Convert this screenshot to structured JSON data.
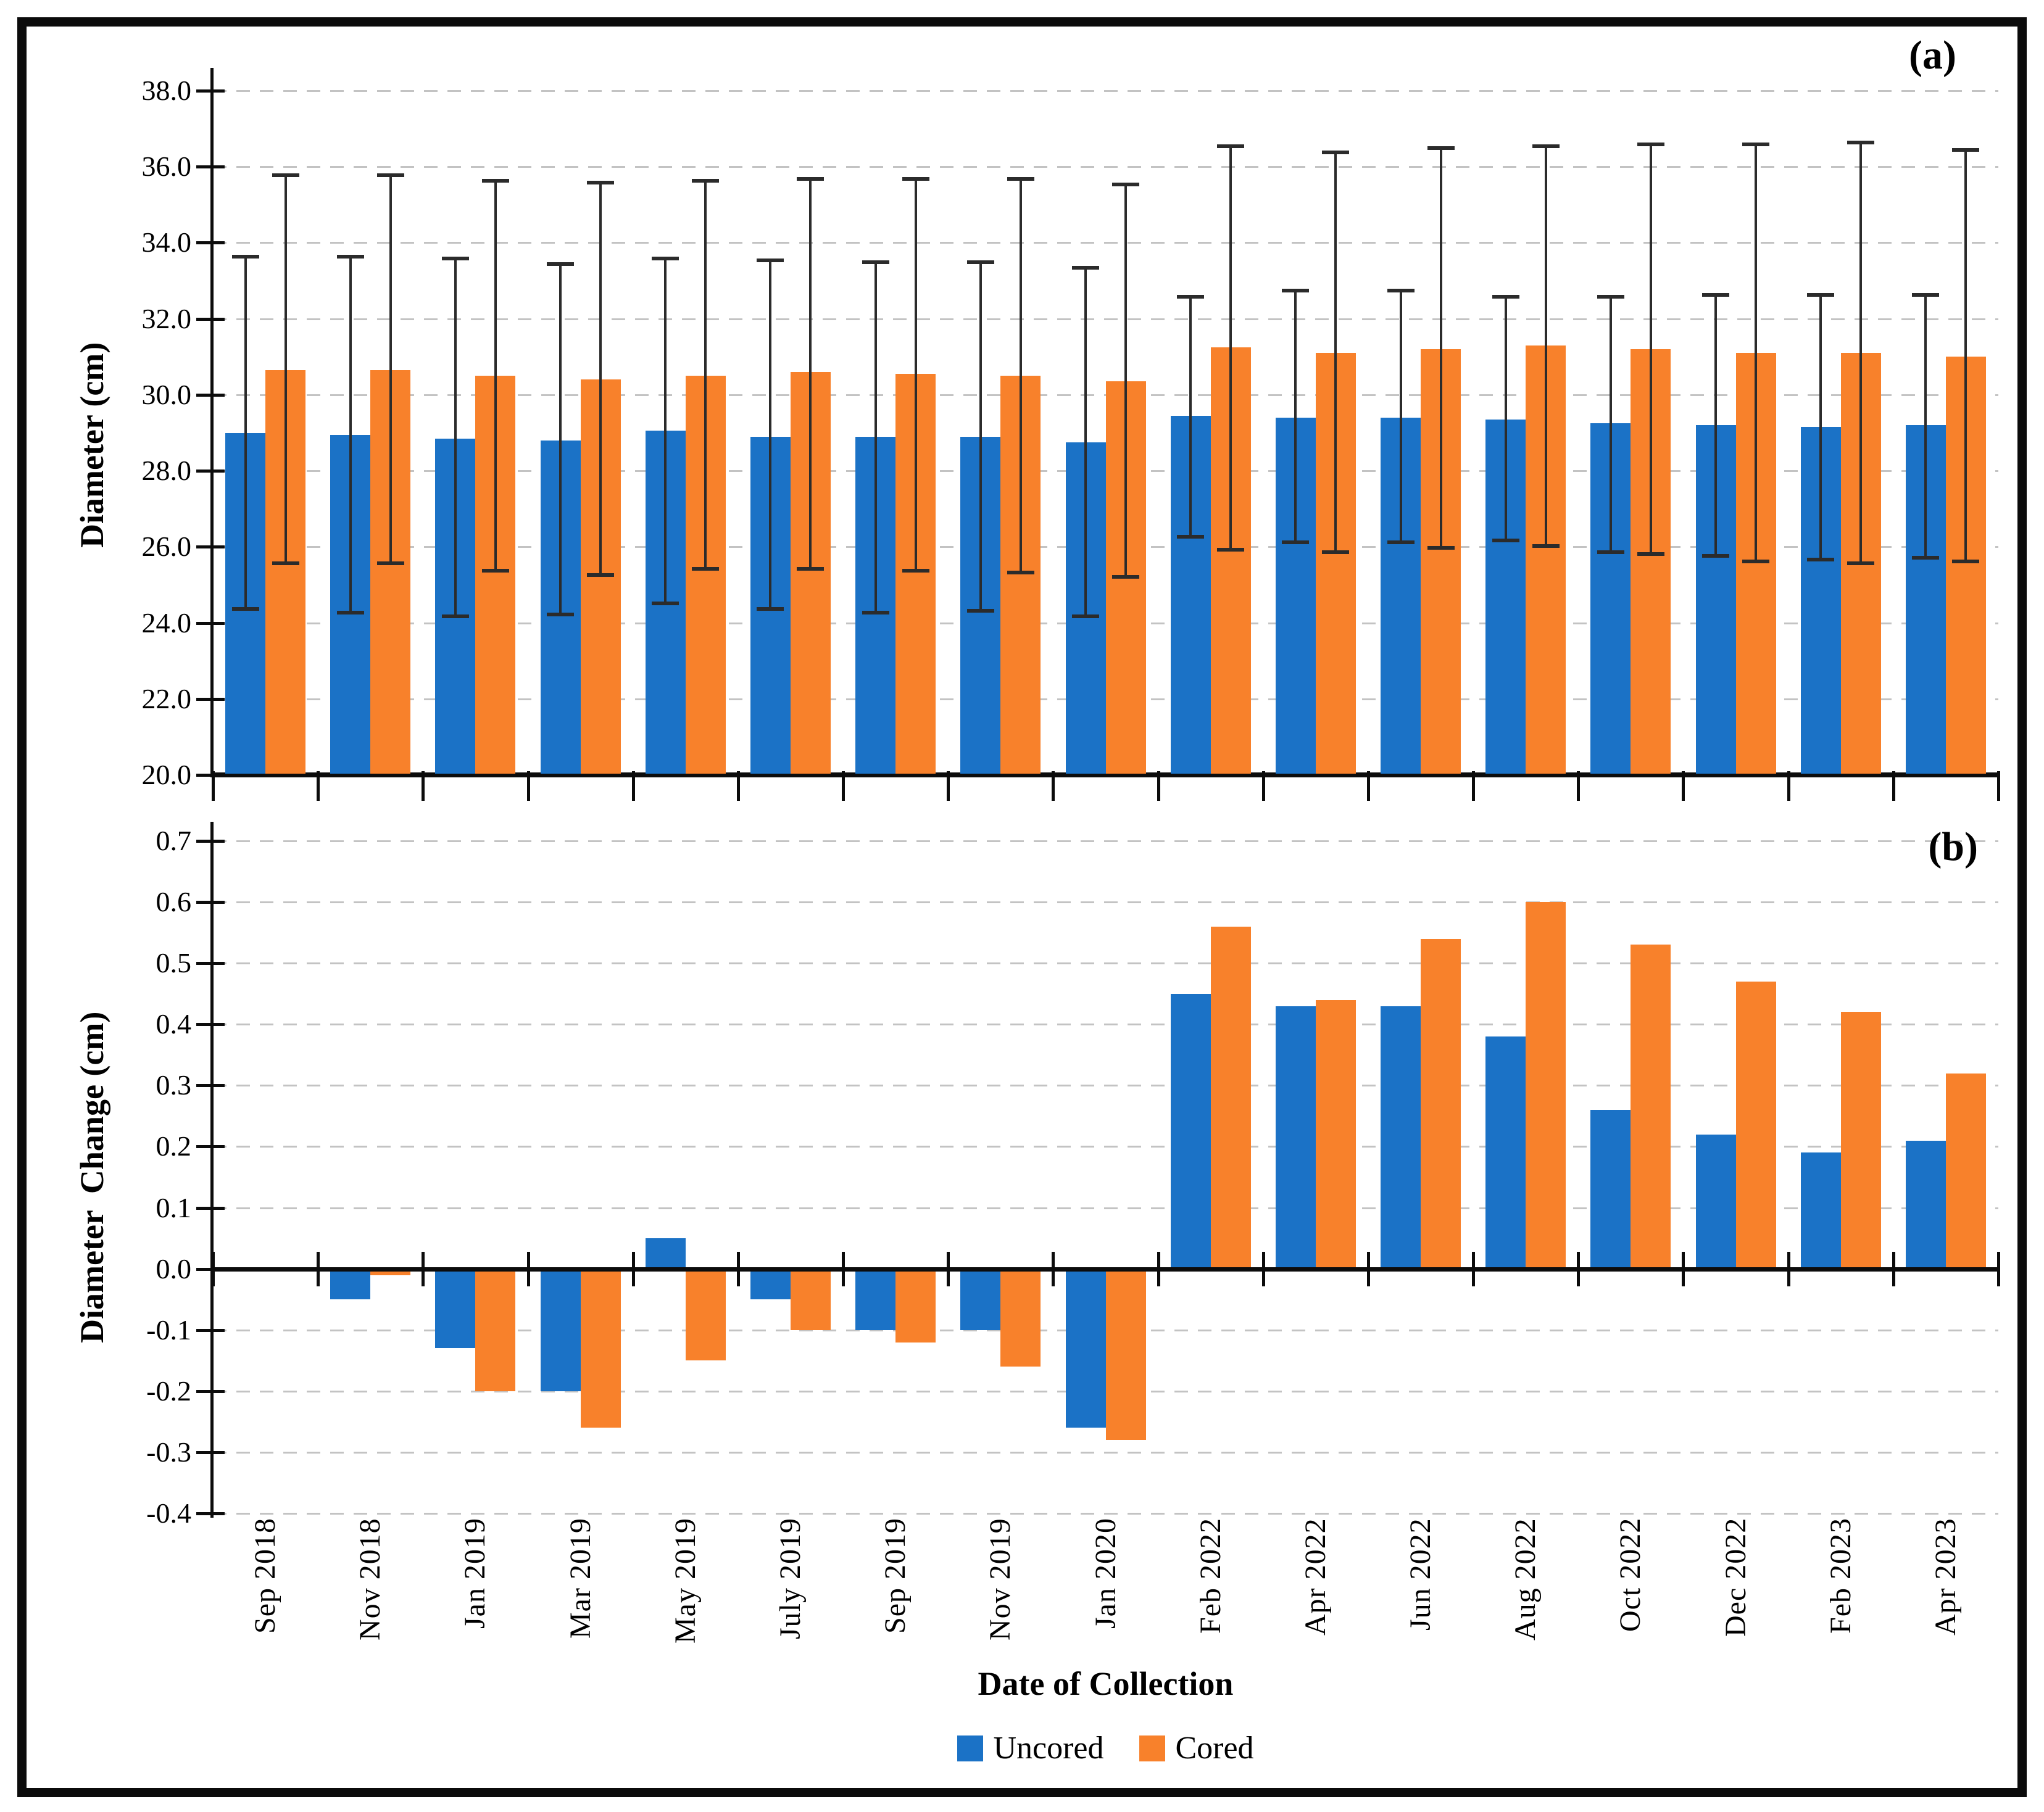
{
  "figure": {
    "panel_a_label": "(a)",
    "panel_b_label": "(b)"
  },
  "colors": {
    "uncored": "#1B72C6",
    "cored": "#F8812B",
    "error_bar": "#2B2B2B",
    "gridline": "#C3C3C3",
    "axis": "#0C0C0C"
  },
  "legend": [
    {
      "name": "Uncored",
      "color": "#1B72C6"
    },
    {
      "name": "Cored",
      "color": "#F8812B"
    }
  ],
  "chart_data": [
    {
      "type": "bar",
      "panel": "a",
      "title": "",
      "ylabel": "Diameter (cm)",
      "xlabel": "",
      "ylim": [
        20.0,
        38.0
      ],
      "ytick_step": 2.0,
      "yticks": [
        "38.0",
        "36.0",
        "34.0",
        "32.0",
        "30.0",
        "28.0",
        "26.0",
        "24.0",
        "22.0",
        "20.0"
      ],
      "grid": "horizontal-dashed",
      "legend_position": "bottom",
      "categories": [
        "Sep 2018",
        "Nov 2018",
        "Jan 2019",
        "Mar 2019",
        "May 2019",
        "July 2019",
        "Sep 2019",
        "Nov 2019",
        "Jan 2020",
        "Feb 2022",
        "Apr 2022",
        "Jun 2022",
        "Aug 2022",
        "Oct 2022",
        "Dec 2022",
        "Feb 2023",
        "Apr 2023"
      ],
      "series": [
        {
          "name": "Uncored",
          "color": "#1B72C6",
          "values": [
            29.0,
            28.95,
            28.85,
            28.8,
            29.05,
            28.9,
            28.9,
            28.9,
            28.75,
            29.45,
            29.4,
            29.4,
            29.35,
            29.25,
            29.2,
            29.15,
            29.2
          ],
          "err_lo": [
            24.35,
            24.25,
            24.15,
            24.2,
            24.5,
            24.35,
            24.25,
            24.3,
            24.15,
            26.25,
            26.1,
            26.1,
            26.15,
            25.85,
            25.75,
            25.65,
            25.7
          ],
          "err_hi": [
            33.65,
            33.65,
            33.6,
            33.45,
            33.6,
            33.55,
            33.5,
            33.5,
            33.35,
            32.6,
            32.75,
            32.75,
            32.6,
            32.6,
            32.65,
            32.65,
            32.65
          ]
        },
        {
          "name": "Cored",
          "color": "#F8812B",
          "values": [
            30.65,
            30.65,
            30.5,
            30.4,
            30.5,
            30.6,
            30.55,
            30.5,
            30.35,
            31.25,
            31.1,
            31.2,
            31.3,
            31.2,
            31.1,
            31.1,
            31.0
          ],
          "err_lo": [
            25.55,
            25.55,
            25.35,
            25.25,
            25.4,
            25.4,
            25.35,
            25.3,
            25.2,
            25.9,
            25.85,
            25.95,
            26.0,
            25.8,
            25.6,
            25.55,
            25.6
          ],
          "err_hi": [
            35.8,
            35.8,
            35.65,
            35.6,
            35.65,
            35.7,
            35.7,
            35.7,
            35.55,
            36.55,
            36.4,
            36.5,
            36.55,
            36.6,
            36.6,
            36.65,
            36.45
          ]
        }
      ]
    },
    {
      "type": "bar",
      "panel": "b",
      "title": "",
      "ylabel": "Diameter  Change (cm)",
      "xlabel": "Date of Collection",
      "ylim": [
        -0.4,
        0.7
      ],
      "ytick_step": 0.1,
      "yticks": [
        "0.7",
        "0.6",
        "0.5",
        "0.4",
        "0.3",
        "0.2",
        "0.1",
        "0.0",
        "-0.1",
        "-0.2",
        "-0.3",
        "-0.4"
      ],
      "grid": "horizontal-dashed",
      "legend_position": "bottom",
      "categories": [
        "Sep 2018",
        "Nov 2018",
        "Jan 2019",
        "Mar 2019",
        "May 2019",
        "July 2019",
        "Sep 2019",
        "Nov 2019",
        "Jan 2020",
        "Feb 2022",
        "Apr 2022",
        "Jun 2022",
        "Aug 2022",
        "Oct 2022",
        "Dec 2022",
        "Feb 2023",
        "Apr 2023"
      ],
      "series": [
        {
          "name": "Uncored",
          "color": "#1B72C6",
          "values": [
            null,
            -0.05,
            -0.13,
            -0.2,
            0.05,
            -0.05,
            -0.1,
            -0.1,
            -0.26,
            0.45,
            0.43,
            0.43,
            0.38,
            0.26,
            0.22,
            0.19,
            0.21
          ]
        },
        {
          "name": "Cored",
          "color": "#F8812B",
          "values": [
            null,
            -0.01,
            -0.2,
            -0.26,
            -0.15,
            -0.1,
            -0.12,
            -0.16,
            -0.28,
            0.56,
            0.44,
            0.54,
            0.6,
            0.53,
            0.47,
            0.42,
            0.32
          ]
        }
      ]
    }
  ]
}
